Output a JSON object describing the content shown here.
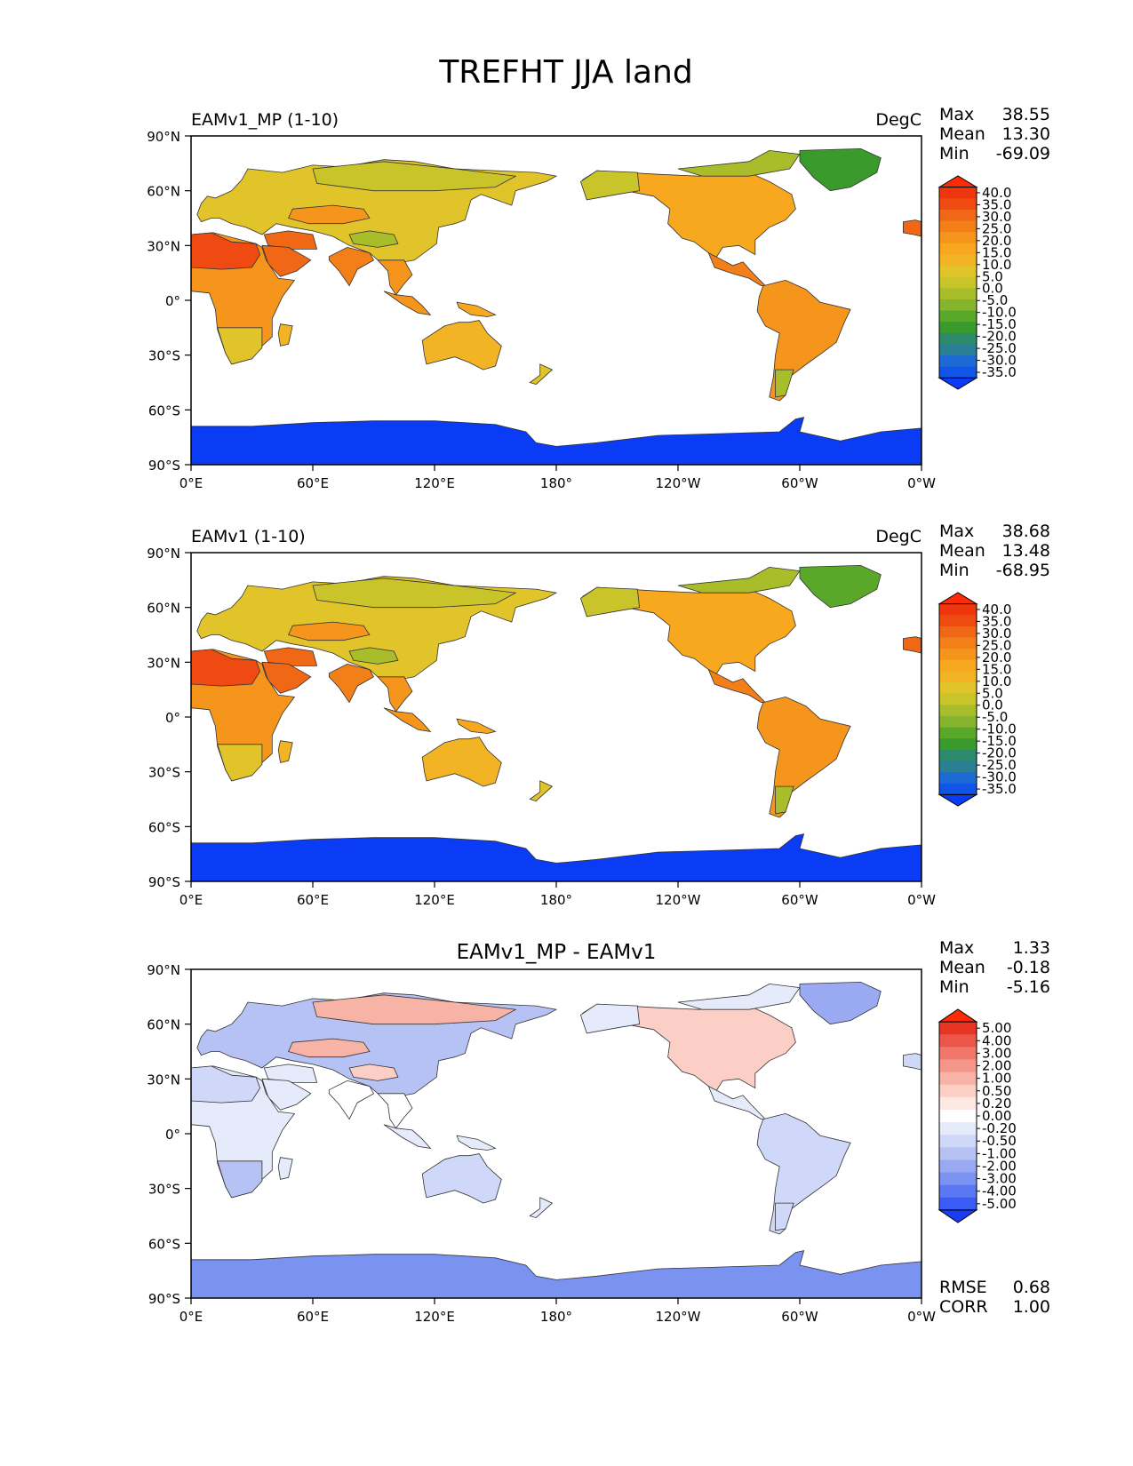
{
  "figure_title": "TREFHT JJA land",
  "colors": {
    "ocean": "#ffffff",
    "coast": "#333333",
    "abs_cmap": [
      "#0a3bf5",
      "#1055e8",
      "#1d6ad4",
      "#2b7f94",
      "#2d8a6a",
      "#3a9a2c",
      "#5aa82a",
      "#86b42c",
      "#a9bd2a",
      "#c8c42a",
      "#e0c42a",
      "#f2b424",
      "#f7a81f",
      "#f5951b",
      "#f37f18",
      "#f06815",
      "#ee4a12",
      "#f0360d",
      "#ff2a08"
    ],
    "diff_cmap": [
      "#1a3cf5",
      "#3a5cf5",
      "#5a78f2",
      "#7b93f0",
      "#9aaaf2",
      "#b6c2f4",
      "#cfd8f8",
      "#e6ebfc",
      "#ffffff",
      "#fde8e2",
      "#fbcfc5",
      "#f7b3a5",
      "#f4968a",
      "#f0776a",
      "#ec5648",
      "#e83424",
      "#ff2a08"
    ]
  },
  "chart_data": [
    {
      "type": "contour_map",
      "panel": "test",
      "left_title": "EAMv1_MP (1-10)",
      "right_title": "DegC",
      "center_title": "",
      "stats": [
        {
          "label": "Max",
          "value": "38.55"
        },
        {
          "label": "Mean",
          "value": "13.30"
        },
        {
          "label": "Min",
          "value": "-69.09"
        }
      ],
      "extra_stats": [],
      "colorbar": {
        "ticks": [
          "40.0",
          "35.0",
          "30.0",
          "25.0",
          "20.0",
          "15.0",
          "10.0",
          "5.0",
          "0.0",
          "-5.0",
          "-10.0",
          "-15.0",
          "-20.0",
          "-25.0",
          "-30.0",
          "-35.0"
        ],
        "cmap": "abs"
      },
      "y_ticks": [
        "90°N",
        "60°N",
        "30°N",
        "0°",
        "30°S",
        "60°S",
        "90°S"
      ],
      "x_ticks": [
        "0°E",
        "60°E",
        "120°E",
        "180°",
        "120°W",
        "60°W",
        "0°W"
      ],
      "regions": [
        {
          "name": "Eurasia",
          "level": 10
        },
        {
          "name": "Siberia",
          "level": 9
        },
        {
          "name": "Middle East",
          "level": 15
        },
        {
          "name": "India",
          "level": 14
        },
        {
          "name": "Tibetan Plateau",
          "level": 8
        },
        {
          "name": "Central Asia",
          "level": 13
        },
        {
          "name": "Arabia",
          "level": 15
        },
        {
          "name": "Africa",
          "level": 13
        },
        {
          "name": "Sahara",
          "level": 16
        },
        {
          "name": "Southern Africa",
          "level": 10
        },
        {
          "name": "Madagascar",
          "level": 11
        },
        {
          "name": "Southeast Asia",
          "level": 13
        },
        {
          "name": "Indonesia",
          "level": 13
        },
        {
          "name": "New Guinea",
          "level": 12
        },
        {
          "name": "Australia",
          "level": 11
        },
        {
          "name": "New Zealand",
          "level": 10
        },
        {
          "name": "North America",
          "level": 12
        },
        {
          "name": "Canadian Arctic",
          "level": 8
        },
        {
          "name": "Alaska",
          "level": 9
        },
        {
          "name": "Greenland",
          "level": 5
        },
        {
          "name": "Central America",
          "level": 14
        },
        {
          "name": "South America",
          "level": 13
        },
        {
          "name": "Patagonia",
          "level": 8
        },
        {
          "name": "Iberia",
          "level": 15
        },
        {
          "name": "Antarctica",
          "level": 0
        }
      ]
    },
    {
      "type": "contour_map",
      "panel": "reference",
      "left_title": "EAMv1 (1-10)",
      "right_title": "DegC",
      "center_title": "",
      "stats": [
        {
          "label": "Max",
          "value": "38.68"
        },
        {
          "label": "Mean",
          "value": "13.48"
        },
        {
          "label": "Min",
          "value": "-68.95"
        }
      ],
      "extra_stats": [],
      "colorbar": {
        "ticks": [
          "40.0",
          "35.0",
          "30.0",
          "25.0",
          "20.0",
          "15.0",
          "10.0",
          "5.0",
          "0.0",
          "-5.0",
          "-10.0",
          "-15.0",
          "-20.0",
          "-25.0",
          "-30.0",
          "-35.0"
        ],
        "cmap": "abs"
      },
      "y_ticks": [
        "90°N",
        "60°N",
        "30°N",
        "0°",
        "30°S",
        "60°S",
        "90°S"
      ],
      "x_ticks": [
        "0°E",
        "60°E",
        "120°E",
        "180°",
        "120°W",
        "60°W",
        "0°W"
      ],
      "regions": [
        {
          "name": "Eurasia",
          "level": 10
        },
        {
          "name": "Siberia",
          "level": 9
        },
        {
          "name": "Middle East",
          "level": 15
        },
        {
          "name": "India",
          "level": 14
        },
        {
          "name": "Tibetan Plateau",
          "level": 8
        },
        {
          "name": "Central Asia",
          "level": 13
        },
        {
          "name": "Arabia",
          "level": 15
        },
        {
          "name": "Africa",
          "level": 13
        },
        {
          "name": "Sahara",
          "level": 16
        },
        {
          "name": "Southern Africa",
          "level": 10
        },
        {
          "name": "Madagascar",
          "level": 11
        },
        {
          "name": "Southeast Asia",
          "level": 13
        },
        {
          "name": "Indonesia",
          "level": 13
        },
        {
          "name": "New Guinea",
          "level": 12
        },
        {
          "name": "Australia",
          "level": 11
        },
        {
          "name": "New Zealand",
          "level": 10
        },
        {
          "name": "North America",
          "level": 12
        },
        {
          "name": "Canadian Arctic",
          "level": 8
        },
        {
          "name": "Alaska",
          "level": 9
        },
        {
          "name": "Greenland",
          "level": 6
        },
        {
          "name": "Central America",
          "level": 14
        },
        {
          "name": "South America",
          "level": 13
        },
        {
          "name": "Patagonia",
          "level": 8
        },
        {
          "name": "Iberia",
          "level": 15
        },
        {
          "name": "Antarctica",
          "level": 0
        }
      ]
    },
    {
      "type": "contour_map",
      "panel": "difference",
      "left_title": "",
      "right_title": "",
      "center_title": "EAMv1_MP - EAMv1",
      "stats": [
        {
          "label": "Max",
          "value": "1.33"
        },
        {
          "label": "Mean",
          "value": "-0.18"
        },
        {
          "label": "Min",
          "value": "-5.16"
        }
      ],
      "extra_stats": [
        {
          "label": "RMSE",
          "value": "0.68"
        },
        {
          "label": "CORR",
          "value": "1.00"
        }
      ],
      "colorbar": {
        "ticks": [
          "5.00",
          "4.00",
          "3.00",
          "2.00",
          "1.00",
          "0.50",
          "0.20",
          "0.00",
          "-0.20",
          "-0.50",
          "-1.00",
          "-2.00",
          "-3.00",
          "-4.00",
          "-5.00"
        ],
        "cmap": "diff"
      },
      "y_ticks": [
        "90°N",
        "60°N",
        "30°N",
        "0°",
        "30°S",
        "60°S",
        "90°S"
      ],
      "x_ticks": [
        "0°E",
        "60°E",
        "120°E",
        "180°",
        "120°W",
        "60°W",
        "0°W"
      ],
      "regions": [
        {
          "name": "Eurasia",
          "level": 5
        },
        {
          "name": "Siberia",
          "level": 11
        },
        {
          "name": "Middle East",
          "level": 7
        },
        {
          "name": "India",
          "level": 8
        },
        {
          "name": "Tibetan Plateau",
          "level": 10
        },
        {
          "name": "Central Asia",
          "level": 11
        },
        {
          "name": "Arabia",
          "level": 7
        },
        {
          "name": "Africa",
          "level": 7
        },
        {
          "name": "Sahara",
          "level": 6
        },
        {
          "name": "Southern Africa",
          "level": 5
        },
        {
          "name": "Madagascar",
          "level": 7
        },
        {
          "name": "Southeast Asia",
          "level": 8
        },
        {
          "name": "Indonesia",
          "level": 7
        },
        {
          "name": "New Guinea",
          "level": 7
        },
        {
          "name": "Australia",
          "level": 6
        },
        {
          "name": "New Zealand",
          "level": 7
        },
        {
          "name": "North America",
          "level": 10
        },
        {
          "name": "Canadian Arctic",
          "level": 7
        },
        {
          "name": "Alaska",
          "level": 7
        },
        {
          "name": "Greenland",
          "level": 4
        },
        {
          "name": "Central America",
          "level": 7
        },
        {
          "name": "South America",
          "level": 6
        },
        {
          "name": "Patagonia",
          "level": 6
        },
        {
          "name": "Iberia",
          "level": 6
        },
        {
          "name": "Antarctica",
          "level": 3
        }
      ]
    }
  ]
}
